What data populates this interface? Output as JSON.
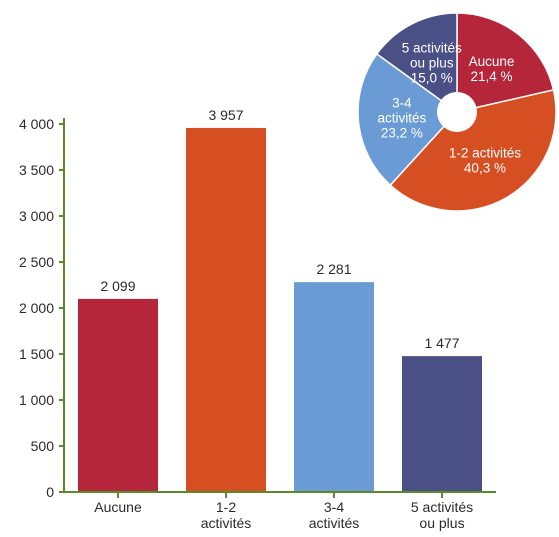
{
  "chart_data": [
    {
      "type": "bar",
      "categories": [
        [
          "Aucune"
        ],
        [
          "1-2",
          "activités"
        ],
        [
          "3-4",
          "activités"
        ],
        [
          "5 activités",
          "ou plus"
        ]
      ],
      "values": [
        2099,
        3957,
        2281,
        1477
      ],
      "value_labels": [
        "2 099",
        "3 957",
        "2 281",
        "1 477"
      ],
      "ylim": [
        0,
        4000
      ],
      "yticks": [
        0,
        500,
        1000,
        1500,
        2000,
        2500,
        3000,
        3500,
        4000
      ],
      "ytick_labels": [
        "0",
        "500",
        "1 000",
        "1 500",
        "2 000",
        "2 500",
        "3 000",
        "3 500",
        "4 000"
      ],
      "colors": [
        "#b5263b",
        "#d64f22",
        "#6a9bd5",
        "#4a4f86"
      ],
      "axis_color": "#5a8a2a",
      "grid": false,
      "title": "",
      "xlabel": "",
      "ylabel": ""
    },
    {
      "type": "pie",
      "donut": true,
      "slices": [
        {
          "lines": [
            "Aucune",
            "21,4 %"
          ],
          "value": 21.4,
          "color": "#b5263b"
        },
        {
          "lines": [
            "1-2 activités",
            "40,3 %"
          ],
          "value": 40.3,
          "color": "#d64f22"
        },
        {
          "lines": [
            "3-4",
            "activités",
            "23,2 %"
          ],
          "value": 23.2,
          "color": "#6a9bd5"
        },
        {
          "lines": [
            "5 activités",
            "ou plus",
            "15,0 %"
          ],
          "value": 15.0,
          "color": "#4a4f86"
        }
      ]
    }
  ]
}
